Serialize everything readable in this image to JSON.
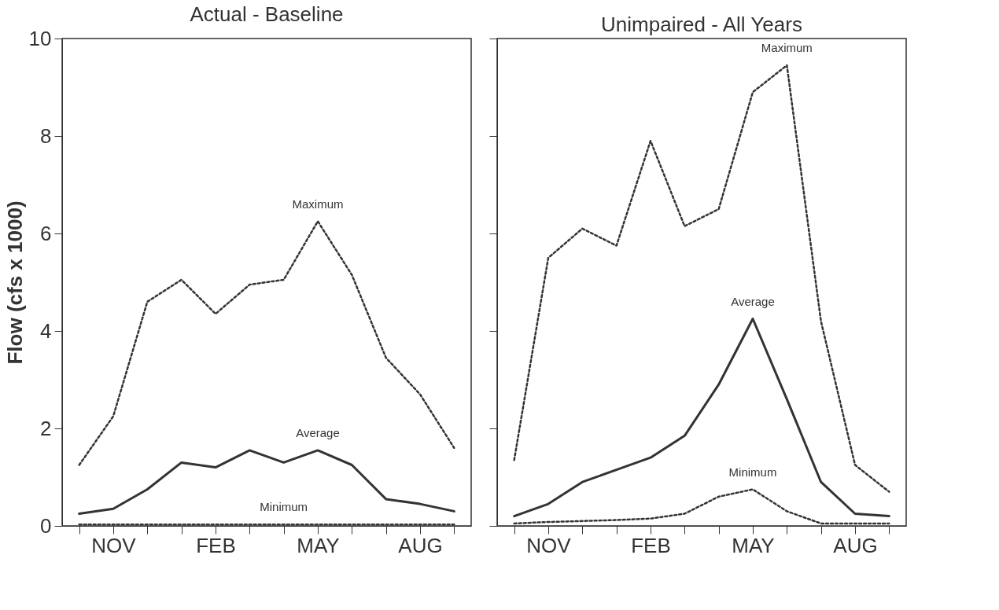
{
  "chart_data": [
    {
      "type": "line",
      "title": "Actual - Baseline",
      "ylabel": "Flow (cfs x 1000)",
      "categories": [
        null,
        "NOV",
        null,
        null,
        "FEB",
        null,
        null,
        "MAY",
        null,
        null,
        "AUG",
        null
      ],
      "ylim": [
        0,
        10
      ],
      "yticks": [
        0,
        2,
        4,
        6,
        8,
        10
      ],
      "grid": false,
      "series": [
        {
          "name": "Maximum",
          "color": "#333333",
          "line_style": "dotted",
          "values": [
            1.25,
            2.25,
            4.6,
            5.05,
            4.35,
            4.95,
            5.05,
            6.25,
            5.15,
            3.45,
            2.7,
            1.6
          ]
        },
        {
          "name": "Average",
          "color": "#333333",
          "line_style": "solid",
          "values": [
            0.25,
            0.35,
            0.75,
            1.3,
            1.2,
            1.55,
            1.3,
            1.55,
            1.25,
            0.55,
            0.45,
            0.3
          ]
        },
        {
          "name": "Minimum",
          "color": "#333333",
          "line_style": "dotted",
          "values": [
            0.03,
            0.03,
            0.03,
            0.03,
            0.03,
            0.03,
            0.03,
            0.03,
            0.03,
            0.03,
            0.03,
            0.03
          ]
        }
      ]
    },
    {
      "type": "line",
      "title": "Unimpaired - All Years",
      "categories": [
        null,
        "NOV",
        null,
        null,
        "FEB",
        null,
        null,
        "MAY",
        null,
        null,
        "AUG",
        null
      ],
      "ylim": [
        0,
        10
      ],
      "yticks": [
        0,
        2,
        4,
        6,
        8,
        10
      ],
      "tick_labels": "x",
      "grid": false,
      "series": [
        {
          "name": "Maximum",
          "color": "#333333",
          "line_style": "dotted",
          "values": [
            1.35,
            5.5,
            6.1,
            5.75,
            7.9,
            6.15,
            6.5,
            8.9,
            9.45,
            4.2,
            1.25,
            0.7
          ]
        },
        {
          "name": "Average",
          "color": "#333333",
          "line_style": "solid",
          "values": [
            0.2,
            0.45,
            0.9,
            1.15,
            1.4,
            1.85,
            2.9,
            4.25,
            2.6,
            0.9,
            0.25,
            0.2
          ]
        },
        {
          "name": "Minimum",
          "color": "#333333",
          "line_style": "dotted",
          "values": [
            0.05,
            0.08,
            0.1,
            0.12,
            0.15,
            0.25,
            0.6,
            0.75,
            0.3,
            0.05,
            0.05,
            0.05
          ]
        }
      ]
    }
  ]
}
